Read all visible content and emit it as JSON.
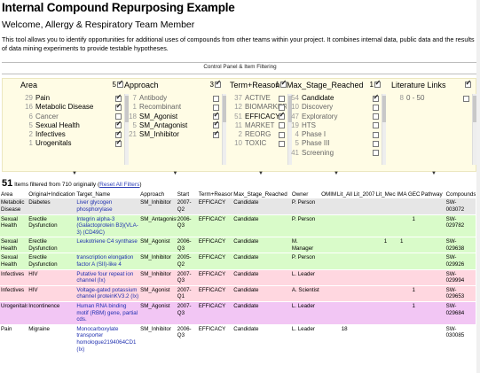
{
  "page": {
    "title": "Internal Compound Repurposing Example",
    "welcome": "Welcome, Allergy & Respiratory Team Member",
    "description": "This tool allows you to identify opportunities for additional uses of compounds from other teams within your project. It combines internal data, public data and the results of data mining experiments to provide testable hypotheses.",
    "control_panel_label": "Control Panel & Item Filtering"
  },
  "facets": {
    "area": {
      "name": "Area",
      "selected_count": "5",
      "items": [
        {
          "count": "29",
          "label": "Pain",
          "checked": true
        },
        {
          "count": "16",
          "label": "Metabolic Disease",
          "checked": true
        },
        {
          "count": "6",
          "label": "Cancer",
          "checked": false
        },
        {
          "count": "5",
          "label": "Sexual Health",
          "checked": true
        },
        {
          "count": "2",
          "label": "Infectives",
          "checked": true
        },
        {
          "count": "1",
          "label": "Urogenitals",
          "checked": true
        }
      ]
    },
    "approach": {
      "name": "Approach",
      "selected_count": "3",
      "items": [
        {
          "count": "7",
          "label": "Antibody",
          "checked": false
        },
        {
          "count": "1",
          "label": "Recombinant",
          "checked": false
        },
        {
          "count": "18",
          "label": "SM_Agonist",
          "checked": true
        },
        {
          "count": "5",
          "label": "SM_Antagonist",
          "checked": true
        },
        {
          "count": "21",
          "label": "SM_Inhibitor",
          "checked": true
        }
      ]
    },
    "term_reason": {
      "name": "Term+Reason",
      "selected_count": "1",
      "items": [
        {
          "count": "37",
          "label": "ACTIVE",
          "checked": false
        },
        {
          "count": "12",
          "label": "BIOMARKER",
          "checked": false
        },
        {
          "count": "51",
          "label": "EFFICACY",
          "checked": true
        },
        {
          "count": "11",
          "label": "MARKET",
          "checked": false
        },
        {
          "count": "2",
          "label": "REORG",
          "checked": false
        },
        {
          "count": "10",
          "label": "TOXIC",
          "checked": false
        }
      ]
    },
    "max_stage": {
      "name": "Max_Stage_Reached",
      "selected_count": "1",
      "items": [
        {
          "count": "54",
          "label": "Candidate",
          "checked": true
        },
        {
          "count": "10",
          "label": "Discovery",
          "checked": false
        },
        {
          "count": "47",
          "label": "Exploratory",
          "checked": false
        },
        {
          "count": "19",
          "label": "HTS",
          "checked": false
        },
        {
          "count": "4",
          "label": "Phase I",
          "checked": false
        },
        {
          "count": "5",
          "label": "Phase III",
          "checked": false
        },
        {
          "count": "41",
          "label": "Screening",
          "checked": false
        }
      ]
    },
    "literature": {
      "name": "Literature Links",
      "items": [
        {
          "count": "8",
          "label": "0 - 50",
          "checked": false
        }
      ]
    }
  },
  "results": {
    "shown": "51",
    "filtered_text": "Items filtered from 710 originally",
    "reset_label": "Reset All Filters",
    "columns": [
      "Area",
      "Original+Indication+",
      "Target_Name",
      "Approach",
      "Start",
      "Term+Reason",
      "Max_Stage_Reached",
      "Owner",
      "OMIM",
      "Lit_All",
      "Lit_2007",
      "Lit_Mech",
      "IMA",
      "GEO",
      "Pathway",
      "Compounds"
    ],
    "rows": [
      {
        "style": "metab",
        "area": "Metabolic Disease",
        "indication": "Diabetes",
        "target": "Liver glycogen phosphorylase",
        "approach": "SM_Inhibitor",
        "start": "2007-Q2",
        "term": "EFFICACY",
        "stage": "Candidate",
        "owner": "P. Person",
        "omim": "",
        "lit_all": "",
        "lit_2007": "",
        "lit_mech": "",
        "ima": "",
        "geo": "",
        "pathway": "",
        "compound": "SW-003072"
      },
      {
        "style": "sexual",
        "area": "Sexual Health",
        "indication": "Erectile Dysfunction",
        "target": "Integrin alpha-3 (Galactoprotein B3)(VLA-3) (CD49C)",
        "approach": "SM_Antagonist",
        "start": "2006-Q3",
        "term": "EFFICACY",
        "stage": "Candidate",
        "owner": "P. Person",
        "omim": "",
        "lit_all": "",
        "lit_2007": "",
        "lit_mech": "",
        "ima": "",
        "geo": "1",
        "pathway": "",
        "compound": "SW-029782"
      },
      {
        "style": "sexual",
        "area": "Sexual Health",
        "indication": "Erectile Dysfunction",
        "target": "Leukotriene C4 synthase",
        "approach": "SM_Agonist",
        "start": "2006-Q3",
        "term": "EFFICACY",
        "stage": "Candidate",
        "owner": "M. Manager",
        "omim": "",
        "lit_all": "",
        "lit_2007": "",
        "lit_mech": "1",
        "ima": "1",
        "geo": "",
        "pathway": "",
        "compound": "SW-029638"
      },
      {
        "style": "sexual",
        "area": "Sexual Health",
        "indication": "Erectile Dysfunction",
        "target": "transcription elongation factor A (SII)-like 4",
        "approach": "SM_Inhibitor",
        "start": "2005-Q2",
        "term": "EFFICACY",
        "stage": "Candidate",
        "owner": "P. Person",
        "omim": "",
        "lit_all": "",
        "lit_2007": "",
        "lit_mech": "",
        "ima": "",
        "geo": "",
        "pathway": "",
        "compound": "SW-029926"
      },
      {
        "style": "infect",
        "area": "Infectives",
        "indication": "HIV",
        "target": "Putative four repeat ion channel (Ix)",
        "approach": "SM_Inhibitor",
        "start": "2007-Q3",
        "term": "EFFICACY",
        "stage": "Candidate",
        "owner": "L. Leader",
        "omim": "",
        "lit_all": "",
        "lit_2007": "",
        "lit_mech": "",
        "ima": "",
        "geo": "",
        "pathway": "",
        "compound": "SW-029994"
      },
      {
        "style": "infect",
        "area": "Infectives",
        "indication": "HIV",
        "target": "Voltage-gated potassium channel proteinKV3.2 (Ix)",
        "approach": "SM_Agonist",
        "start": "2007-Q1",
        "term": "EFFICACY",
        "stage": "Candidate",
        "owner": "A. Scientist",
        "omim": "",
        "lit_all": "",
        "lit_2007": "",
        "lit_mech": "",
        "ima": "",
        "geo": "1",
        "pathway": "",
        "compound": "SW-029653"
      },
      {
        "style": "uro",
        "area": "Urogenitals",
        "indication": "Incontinence",
        "target": "Human RNA binding motif (RBM) gene, partial cds.",
        "approach": "SM_Agonist",
        "start": "2007-Q3",
        "term": "EFFICACY",
        "stage": "Candidate",
        "owner": "L. Leader",
        "omim": "",
        "lit_all": "",
        "lit_2007": "",
        "lit_mech": "",
        "ima": "",
        "geo": "1",
        "pathway": "",
        "compound": "SW-029684"
      },
      {
        "style": "pain",
        "area": "Pain",
        "indication": "Migraine",
        "target": "Monocarboxylate transporter homologue2194064CD1 (Ix)",
        "approach": "SM_Inhibitor",
        "start": "2006-Q3",
        "term": "EFFICACY",
        "stage": "Candidate",
        "owner": "L. Leader",
        "omim": "",
        "lit_all": "18",
        "lit_2007": "",
        "lit_mech": "",
        "ima": "",
        "geo": "",
        "pathway": "",
        "compound": "SW-030085"
      }
    ]
  }
}
